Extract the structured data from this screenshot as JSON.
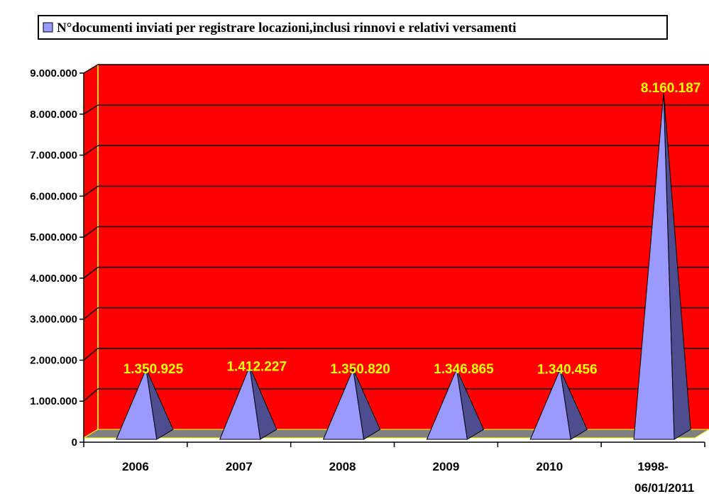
{
  "chart_data": {
    "type": "bar",
    "shape": "pyramid-3d",
    "categories": [
      "2006",
      "2007",
      "2008",
      "2009",
      "2010",
      "1998-\n06/01/2011"
    ],
    "series": [
      {
        "name": "N°documenti inviati per registrare locazioni,inclusi rinnovi e relativi versamenti",
        "values": [
          1350925,
          1412227,
          1350820,
          1346865,
          1340456,
          8160187
        ],
        "labels": [
          "1.350.925",
          "1.412.227",
          "1.350.820",
          "1.346.865",
          "1.340.456",
          "8.160.187"
        ]
      }
    ],
    "ylim": [
      0,
      9000000
    ],
    "yticks": [
      0,
      1000000,
      2000000,
      3000000,
      4000000,
      5000000,
      6000000,
      7000000,
      8000000,
      9000000
    ],
    "ytick_labels": [
      "0",
      "1.000.000",
      "2.000.000",
      "3.000.000",
      "4.000.000",
      "5.000.000",
      "6.000.000",
      "7.000.000",
      "8.000.000",
      "9.000.000"
    ],
    "xlabel": "",
    "ylabel": "",
    "grid": true,
    "legend_position": "top",
    "colors": {
      "plot_background": "#ff0000",
      "floor": "#808080",
      "bar_front": "#9999ff",
      "bar_side": "#4d4d8f",
      "data_label": "#ffff00",
      "grid": "#000000",
      "wall_edge": "#ffff00"
    }
  }
}
